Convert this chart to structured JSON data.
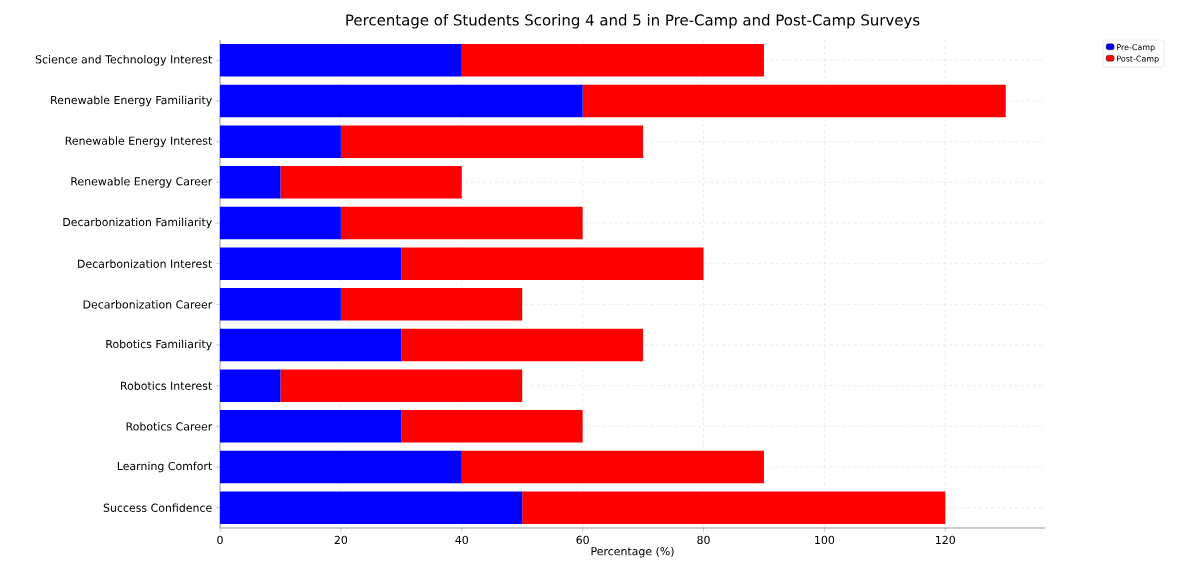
{
  "chart_data": {
    "type": "bar",
    "orientation": "horizontal",
    "stacked": true,
    "title": "Percentage of Students Scoring 4 and 5 in Pre-Camp and Post-Camp Surveys",
    "xlabel": "Percentage (%)",
    "categories": [
      "Science and Technology Interest",
      "Renewable Energy Familiarity",
      "Renewable Energy Interest",
      "Renewable Energy Career",
      "Decarbonization Familiarity",
      "Decarbonization Interest",
      "Decarbonization Career",
      "Robotics Familiarity",
      "Robotics Interest",
      "Robotics Career",
      "Learning Comfort",
      "Success Confidence"
    ],
    "series": [
      {
        "name": "Pre-Camp",
        "color": "#0000ff",
        "values": [
          40,
          60,
          20,
          10,
          20,
          30,
          20,
          30,
          10,
          30,
          40,
          50
        ]
      },
      {
        "name": "Post-Camp",
        "color": "#ff0000",
        "values": [
          50,
          70,
          50,
          30,
          40,
          50,
          30,
          40,
          40,
          30,
          50,
          70
        ]
      }
    ],
    "xlim": [
      0,
      136.5
    ],
    "xticks": [
      0,
      20,
      40,
      60,
      80,
      100,
      120
    ],
    "grid": true,
    "line_style": "dashed",
    "legend": "top right"
  }
}
